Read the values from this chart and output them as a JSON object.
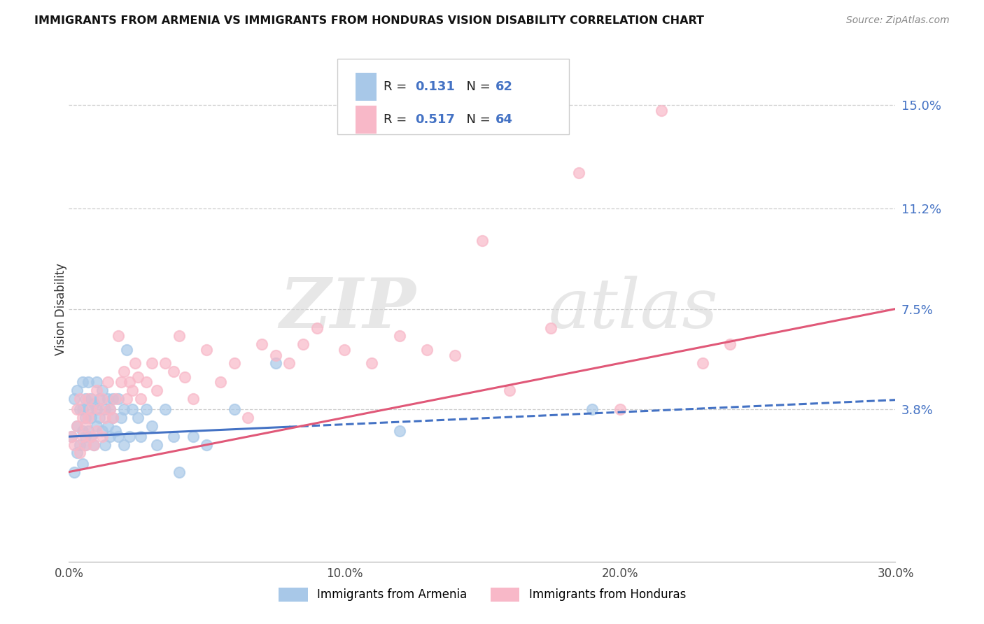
{
  "title": "IMMIGRANTS FROM ARMENIA VS IMMIGRANTS FROM HONDURAS VISION DISABILITY CORRELATION CHART",
  "source": "Source: ZipAtlas.com",
  "ylabel": "Vision Disability",
  "ytick_labels": [
    "15.0%",
    "11.2%",
    "7.5%",
    "3.8%"
  ],
  "ytick_values": [
    0.15,
    0.112,
    0.075,
    0.038
  ],
  "xtick_labels": [
    "0.0%",
    "10.0%",
    "20.0%",
    "30.0%"
  ],
  "xtick_values": [
    0.0,
    0.1,
    0.2,
    0.3
  ],
  "xlim": [
    0.0,
    0.3
  ],
  "ylim": [
    -0.018,
    0.168
  ],
  "armenia_color": "#a8c8e8",
  "honduras_color": "#f8b8c8",
  "armenia_line_color": "#4472c4",
  "honduras_line_color": "#e05878",
  "armenia_R": 0.131,
  "armenia_N": 62,
  "honduras_R": 0.517,
  "honduras_N": 64,
  "legend_label_armenia": "Immigrants from Armenia",
  "legend_label_honduras": "Immigrants from Honduras",
  "watermark_zip": "ZIP",
  "watermark_atlas": "atlas",
  "armenia_line_x_solid_end": 0.08,
  "armenia_line_x_dash_start": 0.08,
  "armenia_line_intercept": 0.028,
  "armenia_line_slope": 0.045,
  "honduras_line_intercept": 0.015,
  "honduras_line_slope": 0.2,
  "armenia_scatter_x": [
    0.001,
    0.002,
    0.002,
    0.003,
    0.003,
    0.003,
    0.004,
    0.004,
    0.005,
    0.005,
    0.005,
    0.005,
    0.006,
    0.006,
    0.006,
    0.006,
    0.007,
    0.007,
    0.007,
    0.008,
    0.008,
    0.008,
    0.009,
    0.009,
    0.01,
    0.01,
    0.01,
    0.011,
    0.011,
    0.012,
    0.012,
    0.013,
    0.013,
    0.014,
    0.014,
    0.015,
    0.015,
    0.016,
    0.016,
    0.017,
    0.018,
    0.018,
    0.019,
    0.02,
    0.02,
    0.021,
    0.022,
    0.023,
    0.025,
    0.026,
    0.028,
    0.03,
    0.032,
    0.035,
    0.038,
    0.04,
    0.045,
    0.05,
    0.06,
    0.075,
    0.12,
    0.19
  ],
  "armenia_scatter_y": [
    0.028,
    0.015,
    0.042,
    0.022,
    0.032,
    0.045,
    0.025,
    0.038,
    0.018,
    0.03,
    0.038,
    0.048,
    0.035,
    0.028,
    0.042,
    0.025,
    0.038,
    0.03,
    0.048,
    0.028,
    0.042,
    0.035,
    0.025,
    0.04,
    0.032,
    0.038,
    0.048,
    0.035,
    0.042,
    0.03,
    0.045,
    0.038,
    0.025,
    0.042,
    0.032,
    0.038,
    0.028,
    0.042,
    0.035,
    0.03,
    0.028,
    0.042,
    0.035,
    0.038,
    0.025,
    0.06,
    0.028,
    0.038,
    0.035,
    0.028,
    0.038,
    0.032,
    0.025,
    0.038,
    0.028,
    0.015,
    0.028,
    0.025,
    0.038,
    0.055,
    0.03,
    0.038
  ],
  "honduras_scatter_x": [
    0.001,
    0.002,
    0.003,
    0.003,
    0.004,
    0.004,
    0.005,
    0.005,
    0.006,
    0.006,
    0.007,
    0.007,
    0.008,
    0.008,
    0.009,
    0.01,
    0.01,
    0.011,
    0.012,
    0.012,
    0.013,
    0.014,
    0.015,
    0.016,
    0.017,
    0.018,
    0.019,
    0.02,
    0.021,
    0.022,
    0.023,
    0.024,
    0.025,
    0.026,
    0.028,
    0.03,
    0.032,
    0.035,
    0.038,
    0.04,
    0.042,
    0.045,
    0.05,
    0.055,
    0.06,
    0.065,
    0.07,
    0.075,
    0.08,
    0.085,
    0.09,
    0.1,
    0.11,
    0.12,
    0.13,
    0.14,
    0.15,
    0.16,
    0.175,
    0.185,
    0.2,
    0.215,
    0.23,
    0.24
  ],
  "honduras_scatter_y": [
    0.028,
    0.025,
    0.032,
    0.038,
    0.022,
    0.042,
    0.028,
    0.035,
    0.032,
    0.025,
    0.042,
    0.035,
    0.028,
    0.038,
    0.025,
    0.045,
    0.03,
    0.038,
    0.042,
    0.028,
    0.035,
    0.048,
    0.038,
    0.035,
    0.042,
    0.065,
    0.048,
    0.052,
    0.042,
    0.048,
    0.045,
    0.055,
    0.05,
    0.042,
    0.048,
    0.055,
    0.045,
    0.055,
    0.052,
    0.065,
    0.05,
    0.042,
    0.06,
    0.048,
    0.055,
    0.035,
    0.062,
    0.058,
    0.055,
    0.062,
    0.068,
    0.06,
    0.055,
    0.065,
    0.06,
    0.058,
    0.1,
    0.045,
    0.068,
    0.125,
    0.038,
    0.148,
    0.055,
    0.062
  ]
}
